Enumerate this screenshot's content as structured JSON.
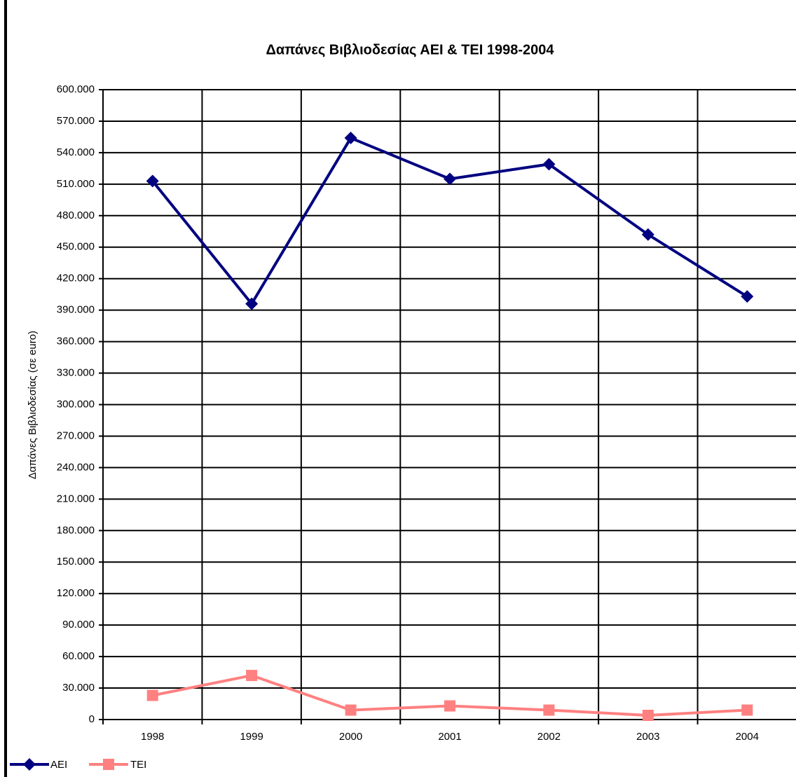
{
  "chart_data": {
    "type": "line",
    "title": "Δαπάνες Βιβλιοδεσίας ΑΕΙ & ΤΕΙ 1998-2004",
    "y_label": "Δαπάνες Βιβλιοδεσίας (σε euro)",
    "categories": [
      "1998",
      "1999",
      "2000",
      "2001",
      "2002",
      "2003",
      "2004"
    ],
    "series": [
      {
        "name": "ΑΕΙ",
        "color": "#000080",
        "marker": "diamond",
        "values": [
          513000,
          396000,
          554000,
          515000,
          529000,
          462000,
          403000
        ]
      },
      {
        "name": "ΤΕΙ",
        "color": "#ff8080",
        "marker": "square",
        "values": [
          23000,
          42000,
          9000,
          13000,
          9000,
          4000,
          9000
        ]
      }
    ],
    "ylim": [
      0,
      600000
    ],
    "yticks": [
      0,
      {
        "value": 30000,
        "label": "30.000"
      },
      {
        "value": 60000,
        "label": "60.000"
      },
      {
        "value": 90000,
        "label": "90.000"
      },
      {
        "value": 120000,
        "label": "120.000"
      },
      {
        "value": 150000,
        "label": "150.000"
      },
      {
        "value": 180000,
        "label": "180.000"
      },
      {
        "value": 210000,
        "label": "210.000"
      },
      {
        "value": 240000,
        "label": "240.000"
      },
      {
        "value": 270000,
        "label": "270.000"
      },
      {
        "value": 300000,
        "label": "300.000"
      },
      {
        "value": 330000,
        "label": "330.000"
      },
      {
        "value": 360000,
        "label": "360.000"
      },
      {
        "value": 390000,
        "label": "390.000"
      },
      {
        "value": 420000,
        "label": "420.000"
      },
      {
        "value": 450000,
        "label": "450.000"
      },
      {
        "value": 480000,
        "label": "480.000"
      },
      {
        "value": 510000,
        "label": "510.000"
      },
      {
        "value": 540000,
        "label": "540.000"
      },
      {
        "value": 570000,
        "label": "570.000"
      },
      {
        "value": 600000,
        "label": "600.000"
      }
    ],
    "grid": true,
    "legend": "bottom-left"
  }
}
